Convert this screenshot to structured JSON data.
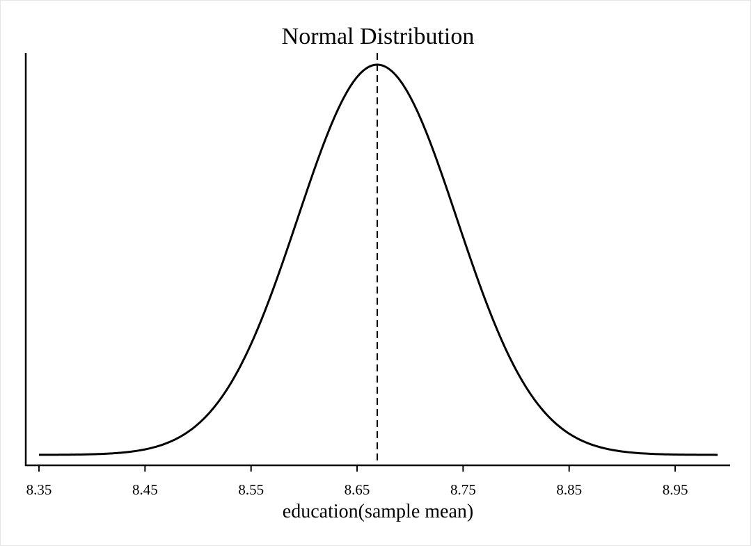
{
  "chart_data": {
    "type": "line",
    "title": "Normal Distribution",
    "xlabel": "education(sample mean)",
    "ylabel": "",
    "xlim": [
      8.35,
      8.99
    ],
    "x_ticks": [
      {
        "value": 8.35,
        "label": "8.35"
      },
      {
        "value": 8.45,
        "label": "8.45"
      },
      {
        "value": 8.55,
        "label": "8.55"
      },
      {
        "value": 8.65,
        "label": "8.65"
      },
      {
        "value": 8.75,
        "label": "8.75"
      },
      {
        "value": 8.85,
        "label": "8.85"
      },
      {
        "value": 8.95,
        "label": "8.95"
      }
    ],
    "series": [
      {
        "distribution": "normal",
        "mean": 8.669,
        "sd": 0.075,
        "x_start": 8.35,
        "x_end": 8.99,
        "line_color": "#000000",
        "line_style": "solid"
      }
    ],
    "reference_line": {
      "x": 8.669,
      "line_style": "dashed",
      "line_color": "#000000"
    },
    "grid": false,
    "legend": "none"
  }
}
